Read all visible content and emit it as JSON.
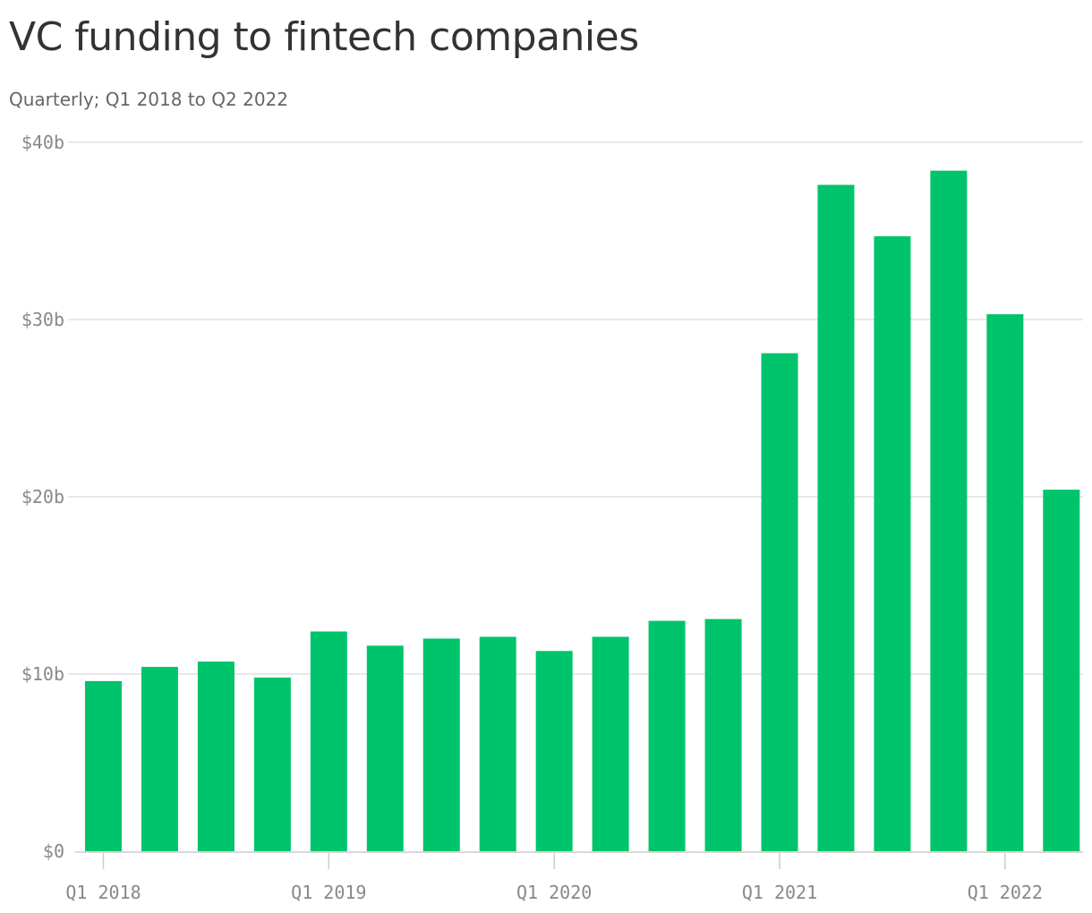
{
  "chart_data": {
    "type": "bar",
    "title": "VC funding to fintech companies",
    "subtitle": "Quarterly; Q1 2018 to Q2 2022",
    "xlabel": "",
    "ylabel": "",
    "categories": [
      "Q1 2018",
      "Q2 2018",
      "Q3 2018",
      "Q4 2018",
      "Q1 2019",
      "Q2 2019",
      "Q3 2019",
      "Q4 2019",
      "Q1 2020",
      "Q2 2020",
      "Q3 2020",
      "Q4 2020",
      "Q1 2021",
      "Q2 2021",
      "Q3 2021",
      "Q4 2021",
      "Q1 2022",
      "Q2 2022"
    ],
    "series": [
      {
        "values": [
          9.6,
          10.4,
          10.7,
          9.8,
          12.4,
          11.6,
          12.0,
          12.1,
          11.3,
          12.1,
          13.0,
          13.1,
          28.1,
          37.6,
          34.7,
          38.4,
          30.3,
          20.4
        ]
      }
    ],
    "x_tick_labels": [
      "Q1 2018",
      "Q1 2019",
      "Q1 2020",
      "Q1 2021",
      "Q1 2022"
    ],
    "y_tick_values": [
      0,
      10,
      20,
      30,
      40
    ],
    "y_tick_labels": [
      "$0",
      "$10b",
      "$20b",
      "$30b",
      "$40b"
    ],
    "ylim": [
      0,
      40
    ],
    "grid": true,
    "legend": "none",
    "bar_color": "#00c46b",
    "grid_color": "#e0e0e0",
    "axis_color": "#cccccc",
    "tick_label_color": "#888888"
  }
}
